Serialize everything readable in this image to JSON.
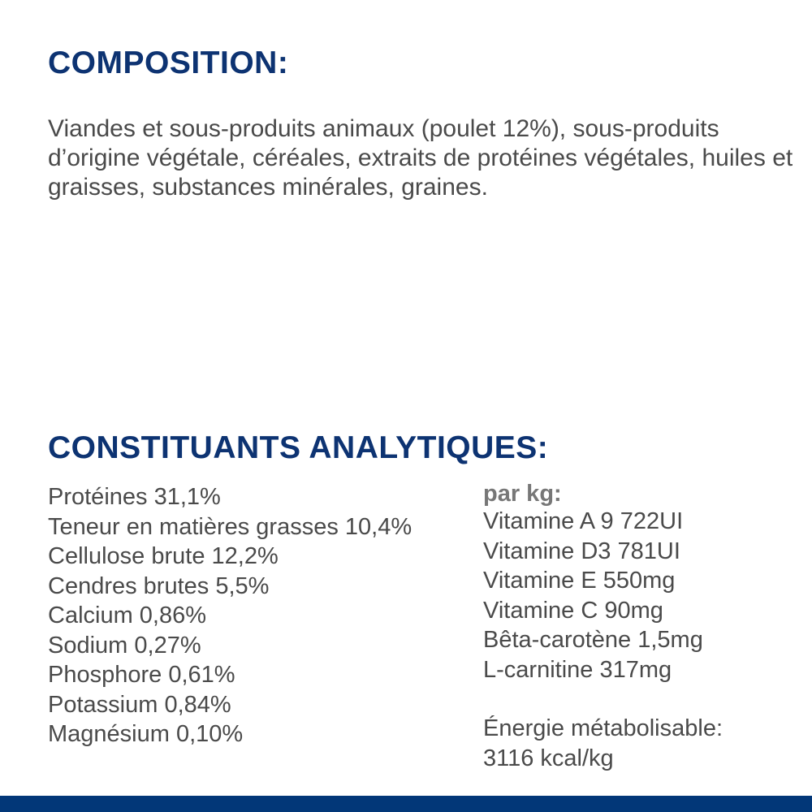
{
  "composition": {
    "title": "COMPOSITION:",
    "text": "Viandes et sous-produits animaux (poulet 12%), sous-produits d’origine végétale, céréales, extraits de protéines végétales, huiles et graisses, substances minérales, graines."
  },
  "analytical": {
    "title": "CONSTITUANTS ANALYTIQUES:",
    "left": [
      "Protéines 31,1%",
      "Teneur en matières grasses 10,4%",
      "Cellulose brute 12,2%",
      "Cendres brutes 5,5%",
      "Calcium 0,86%",
      "Sodium 0,27%",
      "Phosphore 0,61%",
      "Potassium 0,84%",
      "Magnésium 0,10%"
    ],
    "per_kg_label": "par kg:",
    "right": [
      "Vitamine A 9 722UI",
      "Vitamine D3 781UI",
      "Vitamine E 550mg",
      "Vitamine C 90mg",
      "Bêta-carotène 1,5mg",
      "L-carnitine 317mg"
    ],
    "energy_label": "Énergie métabolisable:",
    "energy_value": "3116 kcal/kg"
  },
  "colors": {
    "heading": "#0d3372",
    "text": "#4a4a4a",
    "bar": "#023778"
  }
}
